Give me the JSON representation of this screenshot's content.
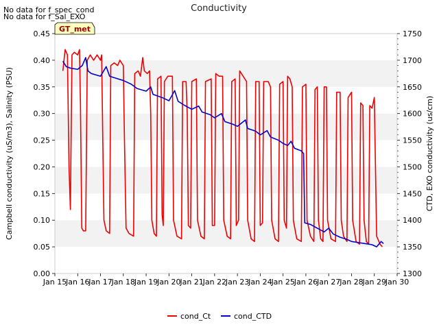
{
  "chart_data": {
    "type": "line",
    "title": "Conductivity",
    "notes": [
      "No data for f_spec_cond",
      "No data for f_Sal_EXO"
    ],
    "badge": "GT_met",
    "ylabel": "Campbell conductivity (uS/m3), Salinity (PSU)",
    "y2label": "CTD, EXO conductivity (us/cm)",
    "xlim": [
      15,
      30
    ],
    "ylim": [
      0,
      0.45
    ],
    "y2lim": [
      1300,
      1750
    ],
    "x_ticks": [
      "Jan 15",
      "Jan 16",
      "Jan 17",
      "Jan 18",
      "Jan 19",
      "Jan 20",
      "Jan 21",
      "Jan 22",
      "Jan 23",
      "Jan 24",
      "Jan 25",
      "Jan 26",
      "Jan 27",
      "Jan 28",
      "Jan 29",
      "Jan 30"
    ],
    "y_ticks": [
      "0.00",
      "0.05",
      "0.10",
      "0.15",
      "0.20",
      "0.25",
      "0.30",
      "0.35",
      "0.40",
      "0.45"
    ],
    "y2_ticks": [
      "1300",
      "1350",
      "1400",
      "1450",
      "1500",
      "1550",
      "1600",
      "1650",
      "1700",
      "1750"
    ],
    "grid": "horizontal bands",
    "legend_placement": "bottom",
    "series": [
      {
        "name": "cond_Ct",
        "color": "#ee0000",
        "axis": "left",
        "points": [
          [
            15.35,
            0.38
          ],
          [
            15.45,
            0.42
          ],
          [
            15.55,
            0.41
          ],
          [
            15.62,
            0.2
          ],
          [
            15.68,
            0.12
          ],
          [
            15.75,
            0.41
          ],
          [
            15.85,
            0.415
          ],
          [
            16.0,
            0.41
          ],
          [
            16.08,
            0.42
          ],
          [
            16.12,
            0.32
          ],
          [
            16.18,
            0.085
          ],
          [
            16.25,
            0.08
          ],
          [
            16.35,
            0.08
          ],
          [
            16.42,
            0.4
          ],
          [
            16.55,
            0.41
          ],
          [
            16.7,
            0.4
          ],
          [
            16.85,
            0.41
          ],
          [
            17.0,
            0.4
          ],
          [
            17.05,
            0.41
          ],
          [
            17.1,
            0.25
          ],
          [
            17.15,
            0.1
          ],
          [
            17.25,
            0.08
          ],
          [
            17.4,
            0.075
          ],
          [
            17.45,
            0.39
          ],
          [
            17.6,
            0.395
          ],
          [
            17.75,
            0.39
          ],
          [
            17.85,
            0.4
          ],
          [
            18.0,
            0.39
          ],
          [
            18.05,
            0.25
          ],
          [
            18.12,
            0.085
          ],
          [
            18.25,
            0.075
          ],
          [
            18.45,
            0.07
          ],
          [
            18.5,
            0.375
          ],
          [
            18.65,
            0.38
          ],
          [
            18.75,
            0.37
          ],
          [
            18.85,
            0.405
          ],
          [
            18.92,
            0.38
          ],
          [
            19.05,
            0.375
          ],
          [
            19.15,
            0.38
          ],
          [
            19.2,
            0.3
          ],
          [
            19.25,
            0.1
          ],
          [
            19.35,
            0.075
          ],
          [
            19.45,
            0.07
          ],
          [
            19.5,
            0.365
          ],
          [
            19.65,
            0.37
          ],
          [
            19.7,
            0.11
          ],
          [
            19.75,
            0.09
          ],
          [
            19.8,
            0.36
          ],
          [
            19.95,
            0.37
          ],
          [
            20.15,
            0.37
          ],
          [
            20.2,
            0.1
          ],
          [
            20.35,
            0.07
          ],
          [
            20.55,
            0.065
          ],
          [
            20.6,
            0.36
          ],
          [
            20.75,
            0.36
          ],
          [
            20.8,
            0.3
          ],
          [
            20.85,
            0.09
          ],
          [
            20.95,
            0.085
          ],
          [
            21.0,
            0.36
          ],
          [
            21.2,
            0.365
          ],
          [
            21.25,
            0.1
          ],
          [
            21.4,
            0.07
          ],
          [
            21.55,
            0.065
          ],
          [
            21.6,
            0.36
          ],
          [
            21.85,
            0.365
          ],
          [
            21.9,
            0.09
          ],
          [
            22.0,
            0.09
          ],
          [
            22.05,
            0.375
          ],
          [
            22.2,
            0.37
          ],
          [
            22.35,
            0.37
          ],
          [
            22.4,
            0.1
          ],
          [
            22.55,
            0.07
          ],
          [
            22.7,
            0.065
          ],
          [
            22.75,
            0.36
          ],
          [
            22.9,
            0.365
          ],
          [
            22.95,
            0.09
          ],
          [
            23.05,
            0.1
          ],
          [
            23.1,
            0.38
          ],
          [
            23.25,
            0.37
          ],
          [
            23.4,
            0.36
          ],
          [
            23.45,
            0.1
          ],
          [
            23.6,
            0.065
          ],
          [
            23.75,
            0.06
          ],
          [
            23.8,
            0.36
          ],
          [
            23.95,
            0.36
          ],
          [
            24.0,
            0.09
          ],
          [
            24.1,
            0.095
          ],
          [
            24.15,
            0.36
          ],
          [
            24.35,
            0.36
          ],
          [
            24.45,
            0.35
          ],
          [
            24.5,
            0.1
          ],
          [
            24.65,
            0.065
          ],
          [
            24.8,
            0.06
          ],
          [
            24.85,
            0.355
          ],
          [
            25.0,
            0.36
          ],
          [
            25.05,
            0.1
          ],
          [
            25.15,
            0.085
          ],
          [
            25.2,
            0.37
          ],
          [
            25.3,
            0.365
          ],
          [
            25.4,
            0.35
          ],
          [
            25.45,
            0.1
          ],
          [
            25.6,
            0.065
          ],
          [
            25.8,
            0.06
          ],
          [
            25.85,
            0.35
          ],
          [
            26.0,
            0.355
          ],
          [
            26.05,
            0.1
          ],
          [
            26.2,
            0.07
          ],
          [
            26.35,
            0.06
          ],
          [
            26.4,
            0.345
          ],
          [
            26.5,
            0.35
          ],
          [
            26.55,
            0.1
          ],
          [
            26.65,
            0.065
          ],
          [
            26.75,
            0.06
          ],
          [
            26.8,
            0.35
          ],
          [
            26.9,
            0.35
          ],
          [
            26.95,
            0.1
          ],
          [
            27.1,
            0.065
          ],
          [
            27.3,
            0.06
          ],
          [
            27.35,
            0.34
          ],
          [
            27.5,
            0.34
          ],
          [
            27.55,
            0.1
          ],
          [
            27.65,
            0.07
          ],
          [
            27.8,
            0.06
          ],
          [
            27.85,
            0.33
          ],
          [
            28.0,
            0.34
          ],
          [
            28.05,
            0.1
          ],
          [
            28.2,
            0.06
          ],
          [
            28.35,
            0.055
          ],
          [
            28.4,
            0.32
          ],
          [
            28.5,
            0.315
          ],
          [
            28.55,
            0.1
          ],
          [
            28.65,
            0.06
          ],
          [
            28.75,
            0.055
          ],
          [
            28.8,
            0.315
          ],
          [
            28.9,
            0.31
          ],
          [
            29.0,
            0.33
          ],
          [
            29.05,
            0.2
          ],
          [
            29.1,
            0.07
          ],
          [
            29.25,
            0.055
          ],
          [
            29.35,
            0.05
          ]
        ]
      },
      {
        "name": "cond_CTD",
        "color": "#0000cc",
        "axis": "right",
        "points": [
          [
            15.35,
            1698
          ],
          [
            15.5,
            1688
          ],
          [
            15.7,
            1685
          ],
          [
            16.0,
            1683
          ],
          [
            16.2,
            1690
          ],
          [
            16.35,
            1705
          ],
          [
            16.45,
            1680
          ],
          [
            16.6,
            1675
          ],
          [
            17.0,
            1670
          ],
          [
            17.25,
            1688
          ],
          [
            17.4,
            1670
          ],
          [
            17.7,
            1666
          ],
          [
            18.0,
            1662
          ],
          [
            18.35,
            1655
          ],
          [
            18.6,
            1647
          ],
          [
            19.0,
            1642
          ],
          [
            19.2,
            1650
          ],
          [
            19.3,
            1636
          ],
          [
            19.7,
            1630
          ],
          [
            20.0,
            1624
          ],
          [
            20.25,
            1643
          ],
          [
            20.4,
            1623
          ],
          [
            20.7,
            1615
          ],
          [
            21.0,
            1608
          ],
          [
            21.3,
            1614
          ],
          [
            21.45,
            1603
          ],
          [
            21.8,
            1598
          ],
          [
            22.0,
            1592
          ],
          [
            22.3,
            1600
          ],
          [
            22.45,
            1585
          ],
          [
            22.8,
            1580
          ],
          [
            23.0,
            1576
          ],
          [
            23.35,
            1588
          ],
          [
            23.45,
            1572
          ],
          [
            23.8,
            1567
          ],
          [
            24.0,
            1560
          ],
          [
            24.3,
            1568
          ],
          [
            24.45,
            1556
          ],
          [
            24.8,
            1550
          ],
          [
            25.0,
            1544
          ],
          [
            25.2,
            1540
          ],
          [
            25.35,
            1548
          ],
          [
            25.5,
            1535
          ],
          [
            25.8,
            1530
          ],
          [
            25.9,
            1525
          ],
          [
            25.95,
            1395
          ],
          [
            26.2,
            1392
          ],
          [
            26.5,
            1385
          ],
          [
            26.8,
            1378
          ],
          [
            27.0,
            1385
          ],
          [
            27.2,
            1374
          ],
          [
            27.5,
            1368
          ],
          [
            27.8,
            1364
          ],
          [
            28.0,
            1360
          ],
          [
            28.3,
            1358
          ],
          [
            28.6,
            1356
          ],
          [
            28.9,
            1354
          ],
          [
            29.1,
            1350
          ],
          [
            29.3,
            1360
          ],
          [
            29.4,
            1356
          ]
        ]
      }
    ]
  }
}
